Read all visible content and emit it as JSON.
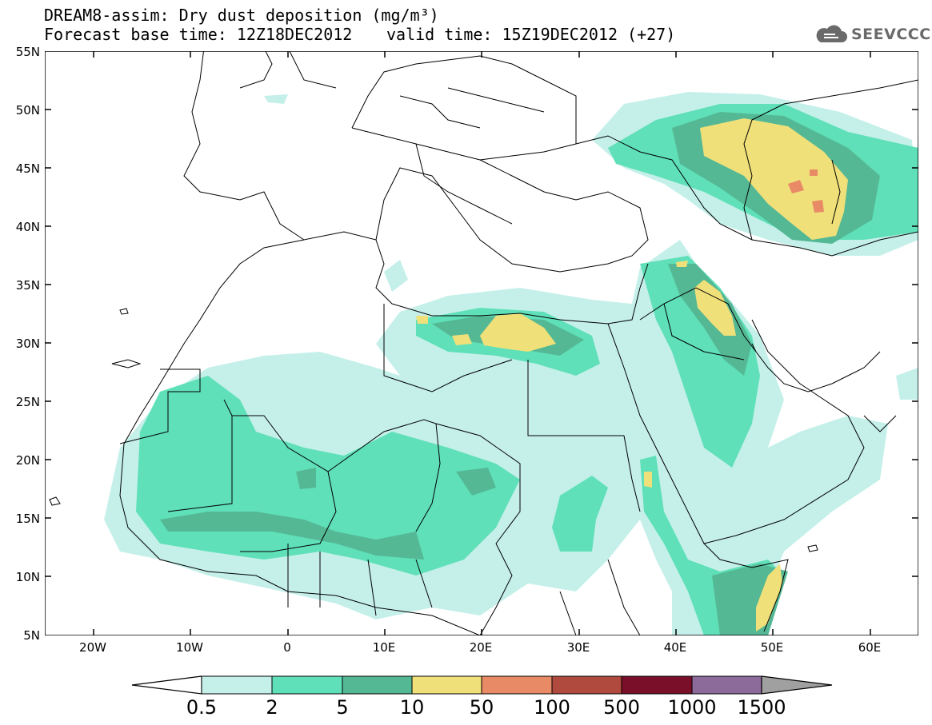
{
  "header": {
    "title_line1": "DREAM8-assim: Dry dust deposition (mg/m³)",
    "base_time": "Forecast base time: 12Z18DEC2012",
    "valid_time": "valid time: 15Z19DEC2012 (+27)",
    "logo_text": "SEEVCCC",
    "logo_icon": "cloud-icon"
  },
  "axes": {
    "lat_labels": [
      "55N",
      "50N",
      "45N",
      "40N",
      "35N",
      "30N",
      "25N",
      "20N",
      "15N",
      "10N",
      "5N"
    ],
    "lon_labels": [
      "20W",
      "10W",
      "0",
      "10E",
      "20E",
      "30E",
      "40E",
      "50E",
      "60E"
    ],
    "lat_range": [
      5,
      55
    ],
    "lon_range": [
      -25,
      65
    ]
  },
  "legend": {
    "labels": [
      "0.5",
      "2",
      "5",
      "10",
      "50",
      "100",
      "500",
      "1000",
      "1500"
    ],
    "colors": [
      "#c5f0ea",
      "#5fe0b8",
      "#55b894",
      "#f0e07a",
      "#e88a66",
      "#b04a3e",
      "#7a0f2a",
      "#8c6a9a",
      "#a0a0a0"
    ]
  },
  "colors": {
    "frame": "#000000",
    "borders": "#000000"
  }
}
